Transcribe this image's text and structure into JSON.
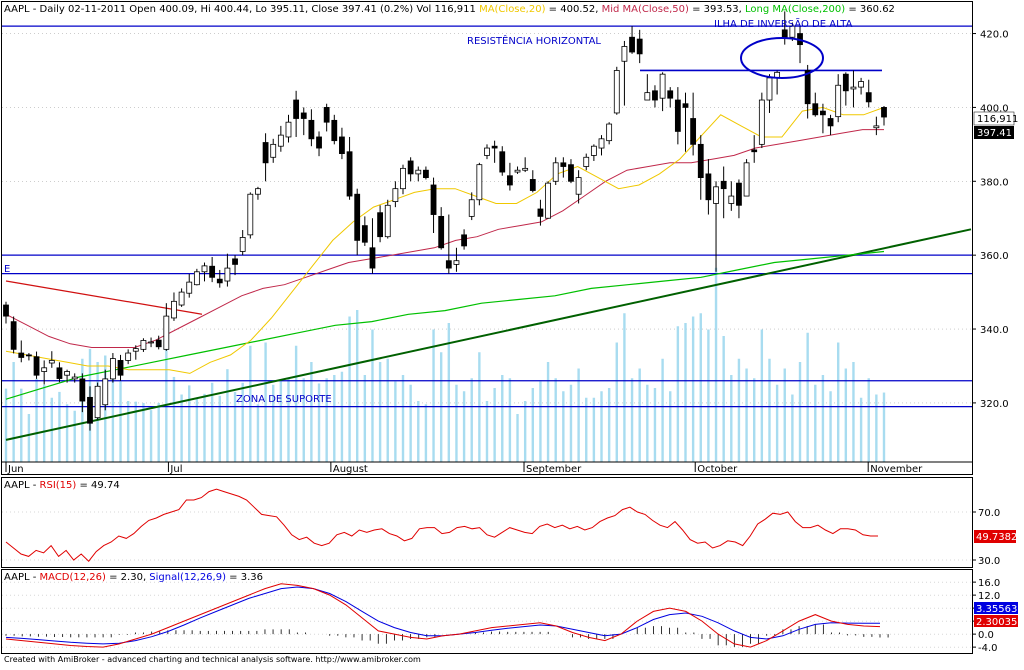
{
  "header": {
    "ticker": "AAPL",
    "text1": " - Daily 02-11-2011 Open 400.09, Hi 400.44, Lo 395.11, Close 397.41 (0.2%) Vol 116,911 ",
    "ma20_label": "MA(Close,20)",
    "ma20_value": " = 400.52, ",
    "ma50_label": "Mid MA(Close,50)",
    "ma50_value": " = 393.53, ",
    "ma200_label": "Long MA(Close,200)",
    "ma200_value": " = 360.62"
  },
  "annotations": {
    "resistance": "RESISTÊNCIA HORIZONTAL",
    "island": "ILHA DE INVERSÃO DE ALTA",
    "support": "ZONA DE SUPORTE",
    "e_marker": "E"
  },
  "badges": {
    "volume": "116,911",
    "close": "397.41",
    "rsi": "49.7382",
    "macd_signal": "3.35563",
    "macd": "2.30035"
  },
  "rsi_header": {
    "ticker": "AAPL",
    "sep": " - ",
    "label": "RSI(15)",
    "value": " = 49.74"
  },
  "macd_header": {
    "ticker": "AAPL",
    "sep": " - ",
    "label": "MACD(12,26)",
    "value": " = 2.30, ",
    "signal_label": "Signal(12,26,9)",
    "signal_value": " = 3.36"
  },
  "footer": "Created with AmiBroker - advanced charting and technical analysis software. http://www.amibroker.com",
  "colors": {
    "up": "#ffffff",
    "down": "#000000",
    "ma20": "#f0c800",
    "ma50": "#c0284a",
    "ma200": "#00c000",
    "volume": "#a8dcf0",
    "level_line": "#0000c8",
    "trendline": "#006000",
    "rsi": "#e00000",
    "macd": "#e00000",
    "signal": "#0000e0",
    "red_line": "#d01010"
  },
  "chart_data": [
    {
      "type": "candlestick",
      "title": "AAPL - Daily 02-11-2011",
      "x_tick_labels": [
        "Jun",
        "Jul",
        "August",
        "September",
        "October",
        "November"
      ],
      "y_axis_ticks": [
        320,
        340,
        360,
        380,
        400,
        420
      ],
      "y_range": [
        304,
        428
      ],
      "levels": {
        "resistance": 422,
        "zone_upper": 360,
        "zone_lower": 355,
        "support_upper": 326,
        "support_lower": 319
      },
      "trendline": {
        "from": [
          6,
          310
        ],
        "to": [
          971,
          367
        ]
      },
      "red_line": {
        "from": [
          6,
          353
        ],
        "to": [
          202,
          344
        ]
      },
      "candles": [
        [
          346.5,
          347.4,
          341.5,
          343.5
        ],
        [
          342.0,
          343.4,
          333.4,
          334.5
        ],
        [
          333.5,
          336.9,
          331.0,
          332.3
        ],
        [
          333.0,
          333.5,
          331.5,
          332.8
        ],
        [
          332.5,
          333.9,
          326.5,
          327.5
        ],
        [
          328.5,
          331.5,
          325.0,
          329.5
        ],
        [
          330.8,
          334.0,
          329.5,
          331.5
        ],
        [
          329.5,
          331.0,
          325.6,
          326.6
        ],
        [
          327.5,
          329.0,
          325.5,
          328.5
        ],
        [
          326.5,
          328.0,
          325.5,
          327.0
        ],
        [
          326.5,
          328.0,
          317.5,
          320.5
        ],
        [
          321.5,
          324.5,
          312.5,
          314.5
        ],
        [
          316.0,
          325.5,
          315.5,
          324.5
        ],
        [
          319.5,
          329.0,
          318.0,
          326.5
        ],
        [
          326.5,
          333.5,
          325.5,
          332.0
        ],
        [
          331.5,
          333.0,
          326.0,
          327.5
        ],
        [
          331.5,
          334.5,
          330.5,
          333.5
        ],
        [
          334.0,
          335.6,
          331.7,
          334.7
        ],
        [
          334.5,
          337.5,
          333.8,
          336.9
        ],
        [
          336.5,
          337.7,
          335.1,
          336.5
        ],
        [
          337.0,
          338.2,
          334.5,
          335.2
        ],
        [
          334.5,
          347.0,
          334.1,
          343.5
        ],
        [
          343.0,
          349.9,
          342.2,
          347.5
        ],
        [
          346.5,
          351.0,
          346.0,
          350.0
        ],
        [
          349.7,
          354.9,
          348.5,
          352.7
        ],
        [
          352.0,
          356.3,
          351.8,
          355.5
        ],
        [
          355.5,
          358.0,
          352.9,
          357.1
        ],
        [
          357.0,
          359.5,
          352.7,
          354.0
        ],
        [
          353.5,
          356.0,
          351.2,
          352.5
        ],
        [
          353.0,
          360.4,
          351.5,
          356.5
        ],
        [
          359.0,
          360.0,
          354.6,
          357.5
        ],
        [
          361.0,
          366.8,
          360.0,
          364.8
        ],
        [
          365.5,
          377.0,
          364.5,
          376.5
        ],
        [
          376.5,
          378.5,
          375.0,
          378.0
        ],
        [
          390.5,
          393.0,
          380.0,
          385.0
        ],
        [
          386.5,
          391.5,
          385.0,
          390.0
        ],
        [
          389.5,
          395.0,
          388.0,
          392.5
        ],
        [
          392.0,
          398.0,
          390.5,
          396.0
        ],
        [
          402.0,
          404.5,
          392.0,
          397.0
        ],
        [
          398.5,
          400.0,
          392.5,
          397.0
        ],
        [
          396.5,
          399.5,
          389.5,
          391.5
        ],
        [
          392.0,
          393.5,
          386.8,
          389.0
        ],
        [
          400.0,
          401.0,
          393.5,
          396.0
        ],
        [
          396.5,
          398.0,
          390.0,
          391.0
        ],
        [
          392.0,
          394.5,
          386.0,
          387.5
        ],
        [
          388.0,
          392.0,
          375.0,
          376.0
        ],
        [
          376.5,
          378.0,
          360.0,
          364.0
        ],
        [
          368.0,
          370.5,
          362.5,
          363.5
        ],
        [
          362.0,
          370.0,
          355.0,
          356.5
        ],
        [
          371.5,
          373.5,
          363.5,
          365.0
        ],
        [
          365.0,
          375.0,
          364.5,
          373.5
        ],
        [
          374.5,
          380.0,
          373.0,
          378.0
        ],
        [
          378.0,
          384.5,
          376.5,
          383.5
        ],
        [
          385.5,
          386.5,
          380.0,
          382.0
        ],
        [
          382.0,
          384.0,
          380.0,
          383.0
        ],
        [
          383.0,
          384.0,
          380.5,
          381.0
        ],
        [
          379.0,
          381.0,
          366.0,
          371.0
        ],
        [
          370.5,
          373.0,
          361.5,
          362.0
        ],
        [
          358.5,
          371.0,
          355.0,
          356.5
        ],
        [
          357.5,
          362.0,
          355.5,
          358.5
        ],
        [
          365.5,
          367.0,
          361.5,
          362.5
        ],
        [
          370.5,
          377.0,
          369.5,
          375.0
        ],
        [
          375.0,
          385.0,
          373.5,
          384.5
        ],
        [
          387.0,
          390.0,
          386.0,
          389.0
        ],
        [
          389.5,
          391.0,
          385.0,
          389.0
        ],
        [
          388.0,
          389.5,
          381.5,
          382.5
        ],
        [
          381.5,
          385.0,
          377.5,
          379.0
        ],
        [
          382.5,
          384.0,
          382.0,
          383.0
        ],
        [
          383.0,
          386.5,
          382.5,
          383.5
        ],
        [
          380.5,
          383.0,
          377.0,
          377.5
        ],
        [
          372.5,
          375.0,
          368.0,
          370.5
        ],
        [
          370.0,
          380.0,
          370.0,
          379.5
        ],
        [
          380.0,
          386.5,
          379.0,
          385.0
        ],
        [
          385.0,
          386.5,
          381.0,
          384.0
        ],
        [
          384.5,
          386.0,
          379.5,
          380.0
        ],
        [
          376.5,
          383.0,
          374.0,
          381.0
        ],
        [
          384.0,
          387.5,
          383.0,
          386.5
        ],
        [
          387.0,
          390.0,
          385.5,
          389.5
        ],
        [
          389.0,
          392.5,
          387.0,
          391.5
        ],
        [
          391.0,
          396.0,
          390.0,
          395.5
        ],
        [
          398.5,
          411.0,
          398.0,
          410.0
        ],
        [
          412.5,
          418.0,
          400.5,
          416.5
        ],
        [
          419.0,
          422.0,
          414.5,
          415.0
        ],
        [
          418.5,
          421.0,
          412.0,
          414.5
        ],
        [
          402.0,
          409.0,
          402.5,
          404.0
        ],
        [
          404.5,
          406.0,
          400.0,
          402.0
        ],
        [
          402.5,
          409.5,
          399.0,
          409.0
        ],
        [
          404.5,
          405.5,
          400.0,
          402.5
        ],
        [
          402.0,
          405.5,
          390.0,
          393.5
        ],
        [
          401.0,
          404.0,
          388.0,
          400.0
        ],
        [
          397.0,
          404.0,
          387.0,
          390.0
        ],
        [
          390.0,
          392.5,
          375.0,
          381.0
        ],
        [
          382.0,
          386.0,
          371.0,
          375.0
        ],
        [
          374.0,
          380.0,
          355.5,
          378.5
        ],
        [
          380.0,
          384.0,
          370.0,
          378.0
        ],
        [
          374.0,
          380.0,
          372.0,
          376.0
        ],
        [
          379.5,
          380.5,
          370.0,
          373.5
        ],
        [
          376.0,
          386.0,
          377.0,
          385.0
        ],
        [
          388.5,
          392.5,
          385.0,
          388.0
        ],
        [
          390.0,
          404.0,
          389.0,
          402.0
        ],
        [
          402.0,
          409.0,
          398.5,
          408.0
        ],
        [
          408.0,
          410.0,
          403.5,
          409.5
        ],
        [
          421.0,
          426.0,
          417.0,
          419.0
        ],
        [
          419.0,
          423.0,
          418.0,
          422.0
        ],
        [
          420.0,
          422.0,
          412.0,
          417.0
        ],
        [
          410.0,
          411.5,
          397.0,
          401.0
        ],
        [
          401.0,
          404.0,
          397.5,
          398.0
        ],
        [
          399.0,
          401.0,
          393.0,
          398.0
        ],
        [
          397.0,
          398.0,
          392.5,
          395.0
        ],
        [
          397.5,
          409.0,
          396.0,
          406.0
        ],
        [
          409.0,
          409.5,
          400.5,
          404.5
        ],
        [
          405.0,
          410.0,
          400.0,
          405.5
        ],
        [
          405.5,
          408.0,
          403.5,
          407.0
        ],
        [
          404.0,
          407.5,
          400.0,
          401.5
        ],
        [
          394.5,
          397.5,
          392.5,
          395.0
        ],
        [
          400.0,
          400.4,
          395.1,
          397.4
        ]
      ],
      "ma20": [
        334,
        333,
        332,
        331,
        330,
        330,
        329,
        329,
        329,
        328,
        331,
        333,
        337,
        343,
        350,
        357,
        364,
        369,
        373,
        375,
        377,
        378,
        378,
        376,
        374,
        374,
        377,
        382,
        384,
        381,
        378,
        379,
        382,
        386,
        392,
        398,
        395,
        392,
        392,
        399,
        400,
        398,
        398,
        400
      ],
      "ma50": [
        344,
        341,
        338,
        336,
        335,
        335,
        335,
        337,
        340,
        343,
        346,
        349,
        351,
        352,
        354,
        356,
        358,
        359,
        360,
        361,
        362,
        364,
        365,
        367,
        368,
        369,
        372,
        376,
        380,
        383,
        384,
        385,
        385,
        386,
        387,
        389,
        390,
        391,
        392,
        393,
        394,
        394
      ],
      "ma200": [
        321,
        324,
        327,
        329,
        331,
        333,
        335,
        337,
        339,
        341,
        342,
        344,
        345,
        347,
        348,
        349,
        351,
        352,
        353,
        354,
        356,
        358,
        359,
        360,
        361
      ],
      "volume_label": "Vol 116,911"
    },
    {
      "type": "line",
      "title": "RSI(15)",
      "y_axis_ticks": [
        30,
        70
      ],
      "y_range": [
        25,
        95
      ],
      "series": [
        {
          "name": "RSI(15)",
          "values": [
            45,
            40,
            35,
            33,
            38,
            36,
            42,
            33,
            38,
            30,
            35,
            29,
            37,
            42,
            45,
            50,
            48,
            52,
            58,
            63,
            65,
            68,
            70,
            72,
            80,
            80,
            82,
            87,
            89,
            87,
            85,
            83,
            80,
            74,
            68,
            67,
            66,
            59,
            51,
            47,
            49,
            44,
            42,
            44,
            51,
            53,
            50,
            55,
            53,
            55,
            56,
            52,
            50,
            46,
            48,
            56,
            57,
            57,
            52,
            53,
            57,
            58,
            56,
            57,
            51,
            49,
            53,
            57,
            55,
            53,
            52,
            58,
            60,
            57,
            59,
            56,
            58,
            55,
            57,
            62,
            65,
            67,
            72,
            74,
            70,
            68,
            63,
            59,
            57,
            62,
            55,
            47,
            44,
            45,
            40,
            42,
            46,
            45,
            42,
            50,
            60,
            64,
            69,
            68,
            70,
            62,
            57,
            57,
            59,
            55,
            52,
            56,
            56,
            55,
            51,
            50,
            50
          ]
        }
      ]
    },
    {
      "type": "line",
      "title": "MACD(12,26)",
      "y_axis_ticks": [
        -4.0,
        0.0,
        4.0,
        8.0,
        12.0,
        16.0
      ],
      "y_range": [
        -5.5,
        18.5
      ],
      "series": [
        {
          "name": "MACD(12,26)",
          "values": [
            -1.5,
            -2.0,
            -2.5,
            -3.0,
            -3.5,
            -3.8,
            -4.0,
            -3.0,
            -1.5,
            0,
            2,
            4,
            6,
            8,
            10,
            12,
            14,
            15.5,
            15,
            14,
            12,
            9,
            5,
            1,
            0,
            -1,
            -1.5,
            -0.5,
            0,
            1,
            2,
            2.5,
            3,
            3.5,
            2.5,
            0.5,
            -1,
            -2,
            0,
            4,
            7,
            8,
            7,
            4,
            0,
            -3,
            -4,
            -2,
            1,
            4,
            6,
            4,
            3,
            2.5,
            2.3
          ]
        },
        {
          "name": "Signal(12,26,9)",
          "values": [
            -1,
            -1.3,
            -1.7,
            -2.1,
            -2.5,
            -2.8,
            -3.0,
            -2.8,
            -2.0,
            -0.8,
            0.8,
            2.8,
            5,
            7,
            9,
            11,
            12.5,
            14,
            14.5,
            14,
            12.5,
            10,
            7,
            4,
            2,
            0.5,
            -0.5,
            -0.5,
            0,
            0.5,
            1.2,
            1.8,
            2.3,
            2.8,
            2.5,
            1.5,
            0.5,
            -0.5,
            0,
            2,
            4.5,
            6,
            6.5,
            5.5,
            3.5,
            1,
            -1,
            -1.5,
            -0.5,
            1.5,
            3,
            3.5,
            3.4,
            3.36,
            3.36
          ]
        }
      ]
    }
  ]
}
